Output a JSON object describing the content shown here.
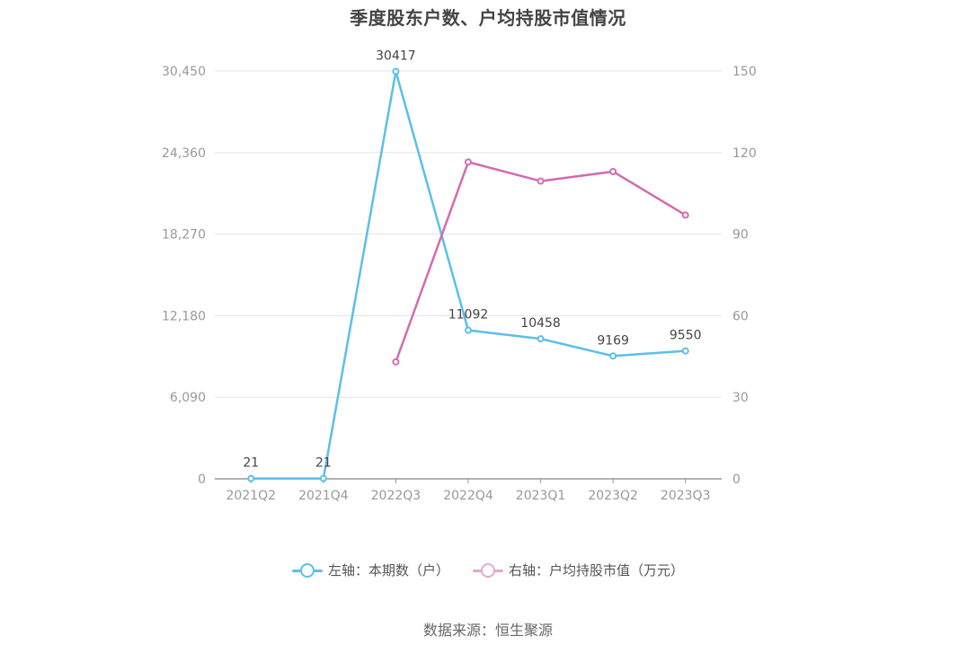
{
  "title": "季度股东户数、户均持股市值情况",
  "legend": {
    "left": "左轴：本期数（户）",
    "right": "右轴：户均持股市值（万元）"
  },
  "source": "数据来源：恒生聚源",
  "colors": {
    "left_series": "#5bbfea",
    "right_series": "#d46bb0",
    "right_series_legend": "#e9a6d2",
    "grid": "#e3e3ee",
    "axis": "#999999"
  },
  "chart_data": {
    "type": "line",
    "title": "季度股东户数、户均持股市值情况",
    "categories": [
      "2021Q2",
      "2021Q4",
      "2022Q3",
      "2022Q4",
      "2023Q1",
      "2023Q2",
      "2023Q3"
    ],
    "y_left": {
      "ticks": [
        "0",
        "6,090",
        "12,180",
        "18,270",
        "24,360",
        "30,450"
      ],
      "ylim": [
        0,
        30450
      ]
    },
    "y_right": {
      "ticks": [
        "0",
        "30",
        "60",
        "90",
        "120",
        "150"
      ],
      "ylim": [
        0,
        150
      ]
    },
    "grid": true,
    "legend_position": "bottom",
    "series": [
      {
        "name": "左轴：本期数（户）",
        "axis": "left",
        "values": [
          21,
          21,
          30417,
          11092,
          10458,
          9169,
          9550
        ],
        "labels": [
          "21",
          "21",
          "30417",
          "11092",
          "10458",
          "9169",
          "9550"
        ]
      },
      {
        "name": "右轴：户均持股市值（万元）",
        "axis": "right",
        "values": [
          null,
          null,
          43,
          116.5,
          109.5,
          113,
          97
        ]
      }
    ]
  }
}
